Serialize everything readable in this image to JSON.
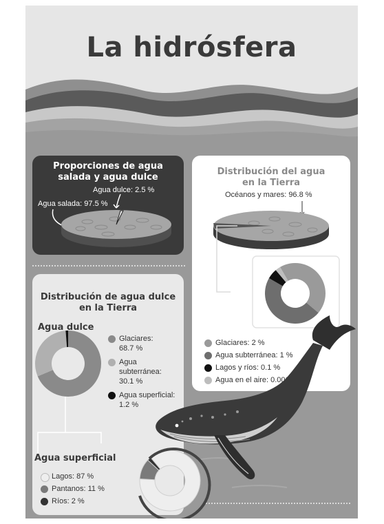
{
  "title": "La hidrósfera",
  "salt_fresh": {
    "title_line1": "Proporciones de agua",
    "title_line2": "salada y agua dulce",
    "fresh_label": "Agua dulce: 2.5 %",
    "salt_label": "Agua salada: 97.5 %",
    "values": {
      "salt": 97.5,
      "fresh": 2.5
    }
  },
  "earth_distribution": {
    "title_line1": "Distribución del agua",
    "title_line2": "en la Tierra",
    "oceans_label": "Océanos y mares: 96.8 %",
    "legend": [
      {
        "label": "Glaciares: 2 %",
        "color": "#9a9a9a"
      },
      {
        "label": "Agua subterránea: 1 %",
        "color": "#6e6e6e"
      },
      {
        "label": "Lagos y ríos: 0.1 %",
        "color": "#111111"
      },
      {
        "label": "Agua en el aire: 0.001 %",
        "color": "#bdbdbd"
      }
    ]
  },
  "freshwater": {
    "title_line1": "Distribución de agua dulce",
    "title_line2": "en la Tierra",
    "subtitle": "Agua dulce",
    "legend": [
      {
        "lines": [
          "Glaciares:",
          "68.7 %"
        ],
        "color": "#8a8a8a",
        "value": 68.7
      },
      {
        "lines": [
          "Agua",
          "subterránea:",
          "30.1 %"
        ],
        "color": "#b0b0b0",
        "value": 30.1
      },
      {
        "lines": [
          "Agua superficial:",
          "1.2 %"
        ],
        "color": "#111111",
        "value": 1.2
      }
    ]
  },
  "surface": {
    "subtitle": "Agua superficial",
    "legend": [
      {
        "label": "Lagos: 87 %",
        "color": "#eeeeee",
        "value": 87
      },
      {
        "label": "Pantanos: 11 %",
        "color": "#7a7a7a",
        "value": 11
      },
      {
        "label": "Ríos: 2 %",
        "color": "#333333",
        "value": 2
      }
    ]
  }
}
